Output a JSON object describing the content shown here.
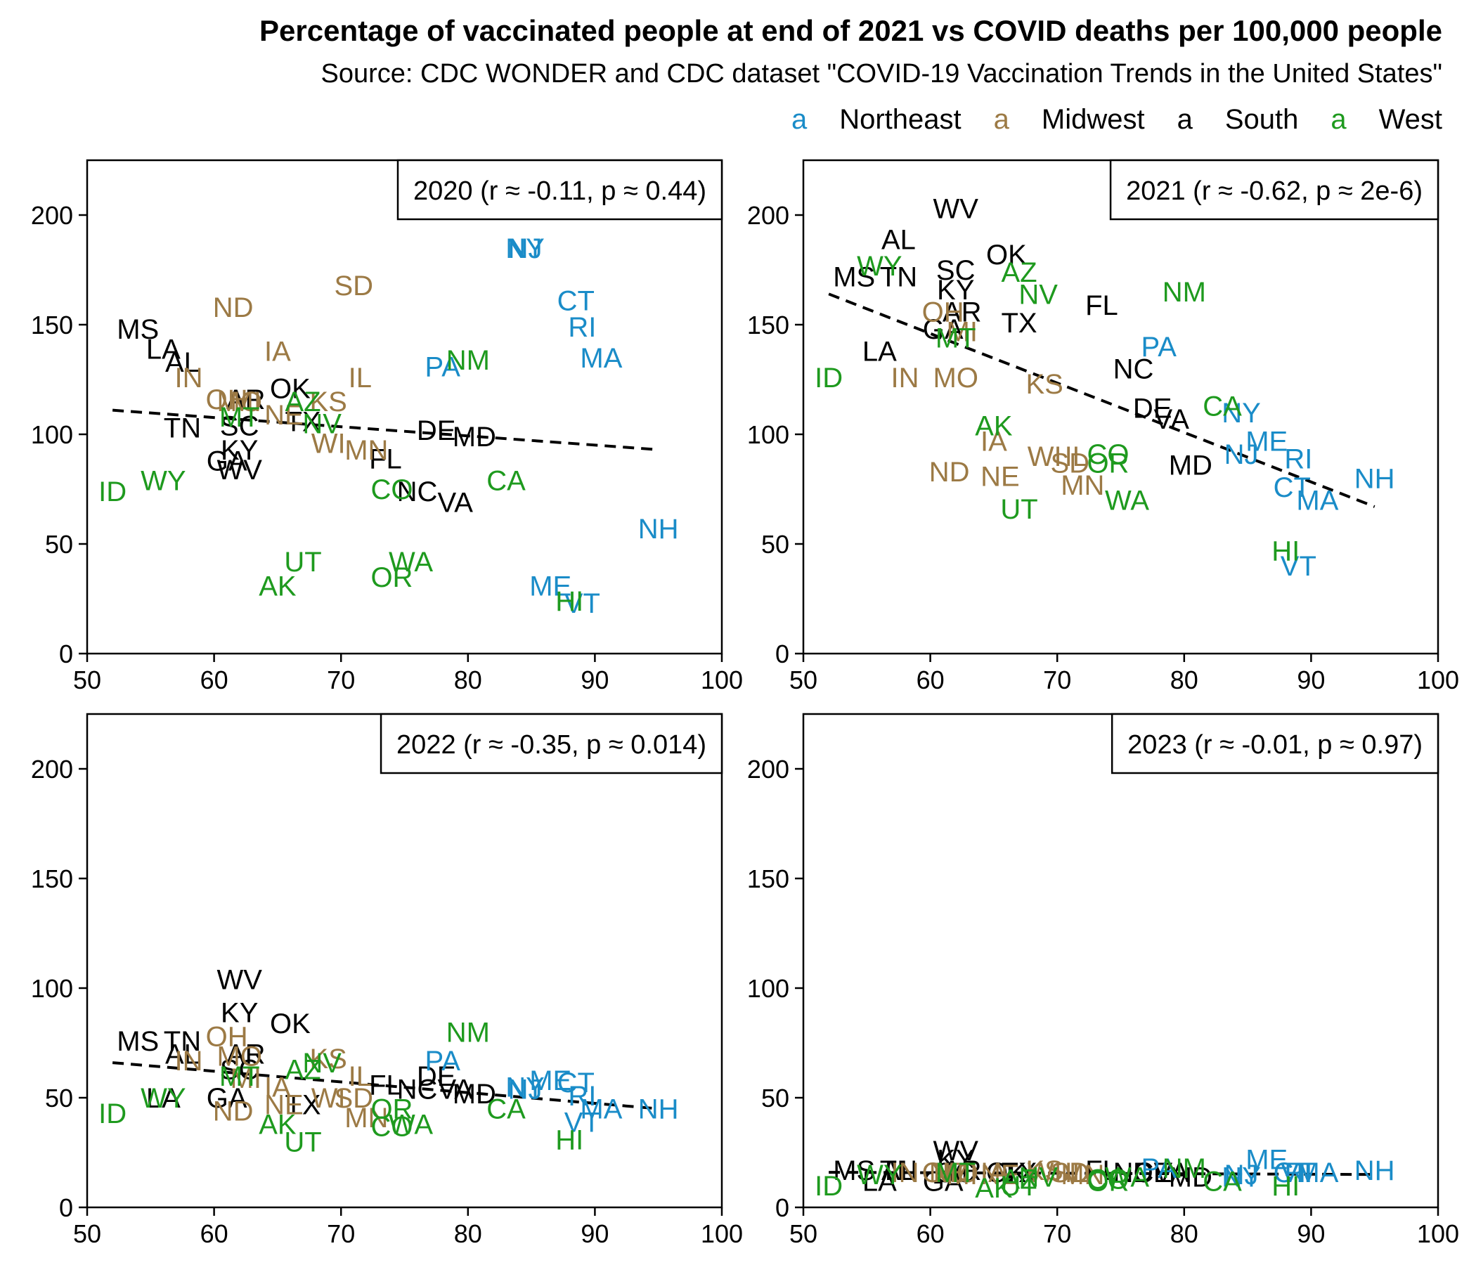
{
  "title": "Percentage of vaccinated people at end of 2021 vs COVID deaths per 100,000 people",
  "subtitle": "Source: CDC WONDER and CDC dataset \"COVID-19 Vaccination Trends in the United States\"",
  "legend": {
    "key_glyph": "a",
    "items": [
      {
        "name": "Northeast",
        "color": "#1a8cc8"
      },
      {
        "name": "Midwest",
        "color": "#9c7a45"
      },
      {
        "name": "South",
        "color": "#000000"
      },
      {
        "name": "West",
        "color": "#1e9a1e"
      }
    ]
  },
  "colors": {
    "Northeast": "#1a8cc8",
    "Midwest": "#9c7a45",
    "South": "#000000",
    "West": "#1e9a1e"
  },
  "state_region": {
    "CT": "Northeast",
    "ME": "Northeast",
    "MA": "Northeast",
    "NH": "Northeast",
    "RI": "Northeast",
    "VT": "Northeast",
    "NJ": "Northeast",
    "NY": "Northeast",
    "PA": "Northeast",
    "IL": "Midwest",
    "IN": "Midwest",
    "MI": "Midwest",
    "OH": "Midwest",
    "WI": "Midwest",
    "IA": "Midwest",
    "KS": "Midwest",
    "MN": "Midwest",
    "MO": "Midwest",
    "NE": "Midwest",
    "ND": "Midwest",
    "SD": "Midwest",
    "DE": "South",
    "FL": "South",
    "GA": "South",
    "MD": "South",
    "NC": "South",
    "SC": "South",
    "VA": "South",
    "WV": "South",
    "AL": "South",
    "KY": "South",
    "MS": "South",
    "TN": "South",
    "AR": "South",
    "LA": "South",
    "OK": "South",
    "TX": "South",
    "AZ": "West",
    "CO": "West",
    "ID": "West",
    "MT": "West",
    "NV": "West",
    "NM": "West",
    "UT": "West",
    "WY": "West",
    "AK": "West",
    "CA": "West",
    "HI": "West",
    "OR": "West",
    "WA": "West"
  },
  "vaccination_pct": {
    "MS": 54,
    "LA": 56,
    "AL": 57.5,
    "WV": 62,
    "TN": 57.5,
    "SC": 62,
    "KY": 62,
    "OK": 66,
    "AR": 62.5,
    "GA": 61,
    "TX": 67,
    "NC": 76,
    "FL": 73.5,
    "DE": 77.5,
    "VA": 79,
    "MD": 80.5,
    "ND": 61.5,
    "SD": 71,
    "IA": 65,
    "IN": 58,
    "OH": 61,
    "MI": 62.5,
    "MO": 62,
    "KS": 69,
    "IL": 71.5,
    "WI": 69,
    "MN": 72,
    "NE": 65.5,
    "NY": 84.5,
    "NJ": 84.5,
    "CT": 88.5,
    "RI": 89,
    "MA": 90.5,
    "PA": 78,
    "NH": 95,
    "ME": 86.5,
    "VT": 89,
    "ID": 52,
    "WY": 56,
    "MT": 62,
    "AZ": 67,
    "NV": 68.5,
    "NM": 80,
    "UT": 67,
    "AK": 65,
    "CO": 74,
    "OR": 74,
    "WA": 75.5,
    "CA": 83,
    "HI": 88
  },
  "chart_data": [
    {
      "type": "scatter",
      "label": "2020 (r ≈ -0.11, p ≈ 0.44)",
      "xlim": [
        50,
        100
      ],
      "ylim": [
        0,
        225
      ],
      "xticks": [
        50,
        60,
        70,
        80,
        90,
        100
      ],
      "yticks": [
        0,
        50,
        100,
        150,
        200
      ],
      "trend": [
        [
          52,
          111
        ],
        [
          95,
          93
        ]
      ],
      "deaths_per_100k": {
        "MS": 148,
        "LA": 139,
        "AL": 133,
        "WV": 84,
        "TN": 103,
        "SC": 104,
        "KY": 93,
        "OK": 121,
        "AR": 116,
        "GA": 88,
        "TX": 106,
        "NC": 74,
        "FL": 89,
        "DE": 102,
        "VA": 69,
        "MD": 99,
        "ND": 158,
        "SD": 168,
        "IA": 138,
        "IN": 126,
        "OH": 116,
        "MI": 115,
        "MO": 115,
        "KS": 115,
        "IL": 126,
        "WI": 96,
        "MN": 93,
        "NE": 109,
        "NY": 185,
        "NJ": 185,
        "CT": 161,
        "RI": 149,
        "MA": 135,
        "PA": 131,
        "NH": 57,
        "ME": 31,
        "VT": 23,
        "ID": 74,
        "WY": 79,
        "MT": 108,
        "AZ": 115,
        "NV": 105,
        "NM": 134,
        "UT": 42,
        "AK": 31,
        "CO": 75,
        "OR": 35,
        "WA": 42,
        "CA": 79,
        "HI": 24
      }
    },
    {
      "type": "scatter",
      "label": "2021 (r ≈ -0.62, p ≈ 2e-6)",
      "xlim": [
        50,
        100
      ],
      "ylim": [
        0,
        225
      ],
      "xticks": [
        50,
        60,
        70,
        80,
        90,
        100
      ],
      "yticks": [
        0,
        50,
        100,
        150,
        200
      ],
      "trend": [
        [
          52,
          164
        ],
        [
          95,
          67
        ]
      ],
      "deaths_per_100k": {
        "MS": 172,
        "LA": 138,
        "AL": 189,
        "WV": 203,
        "TN": 172,
        "SC": 175,
        "KY": 166,
        "OK": 182,
        "AR": 156,
        "GA": 148,
        "TX": 151,
        "NC": 130,
        "FL": 159,
        "DE": 112,
        "VA": 107,
        "MD": 86,
        "ND": 83,
        "SD": 87,
        "IA": 97,
        "IN": 126,
        "OH": 156,
        "MI": 147,
        "MO": 126,
        "KS": 123,
        "IL": 90,
        "WI": 90,
        "MN": 77,
        "NE": 81,
        "NY": 110,
        "NJ": 91,
        "CT": 76,
        "RI": 89,
        "MA": 70,
        "PA": 140,
        "NH": 80,
        "ME": 97,
        "VT": 40,
        "ID": 126,
        "WY": 177,
        "MT": 144,
        "AZ": 174,
        "NV": 164,
        "NM": 165,
        "UT": 66,
        "AK": 104,
        "CO": 91,
        "OR": 87,
        "WA": 70,
        "CA": 113,
        "HI": 47
      }
    },
    {
      "type": "scatter",
      "label": "2022 (r ≈ -0.35, p ≈ 0.014)",
      "xlim": [
        50,
        100
      ],
      "ylim": [
        0,
        225
      ],
      "xticks": [
        50,
        60,
        70,
        80,
        90,
        100
      ],
      "yticks": [
        0,
        50,
        100,
        150,
        200
      ],
      "trend": [
        [
          52,
          66
        ],
        [
          95,
          45
        ]
      ],
      "deaths_per_100k": {
        "MS": 76,
        "LA": 50,
        "AL": 70,
        "WV": 104,
        "TN": 76,
        "SC": 63,
        "KY": 89,
        "OK": 84,
        "AR": 70,
        "GA": 50,
        "TX": 47,
        "NC": 54,
        "FL": 56,
        "DE": 60,
        "VA": 54,
        "MD": 52,
        "ND": 44,
        "SD": 50,
        "IA": 55,
        "IN": 67,
        "OH": 78,
        "MI": 59,
        "MO": 69,
        "KS": 68,
        "IL": 60,
        "WI": 50,
        "MN": 41,
        "NE": 47,
        "NY": 55,
        "NJ": 54,
        "CT": 57,
        "RI": 51,
        "MA": 45,
        "PA": 67,
        "NH": 45,
        "ME": 58,
        "VT": 39,
        "ID": 43,
        "WY": 50,
        "MT": 60,
        "AZ": 63,
        "NV": 66,
        "NM": 80,
        "UT": 30,
        "AK": 38,
        "CO": 37,
        "OR": 45,
        "WA": 38,
        "CA": 45,
        "HI": 31
      }
    },
    {
      "type": "scatter",
      "label": "2023 (r ≈ -0.01, p ≈ 0.97)",
      "xlim": [
        50,
        100
      ],
      "ylim": [
        0,
        225
      ],
      "xticks": [
        50,
        60,
        70,
        80,
        90,
        100
      ],
      "yticks": [
        0,
        50,
        100,
        150,
        200
      ],
      "trend": [
        [
          52,
          16
        ],
        [
          95,
          15
        ]
      ],
      "deaths_per_100k": {
        "MS": 17,
        "LA": 12,
        "AL": 17,
        "WV": 26,
        "TN": 17,
        "SC": 16,
        "KY": 22,
        "OK": 16,
        "AR": 17,
        "GA": 12,
        "TX": 16,
        "NC": 16,
        "FL": 17,
        "DE": 16,
        "VA": 16,
        "MD": 14,
        "ND": 16,
        "SD": 16,
        "IA": 16,
        "IN": 16,
        "OH": 16,
        "MI": 15,
        "MO": 16,
        "KS": 17,
        "IL": 16,
        "WI": 16,
        "MN": 15,
        "NE": 15,
        "NY": 14,
        "NJ": 15,
        "CT": 16,
        "RI": 16,
        "MA": 16,
        "PA": 18,
        "NH": 17,
        "ME": 22,
        "VT": 16,
        "ID": 10,
        "WY": 15,
        "MT": 16,
        "AZ": 13,
        "NV": 14,
        "NM": 18,
        "UT": 10,
        "AK": 9,
        "CO": 13,
        "OR": 12,
        "WA": 14,
        "CA": 12,
        "HI": 10
      }
    }
  ]
}
